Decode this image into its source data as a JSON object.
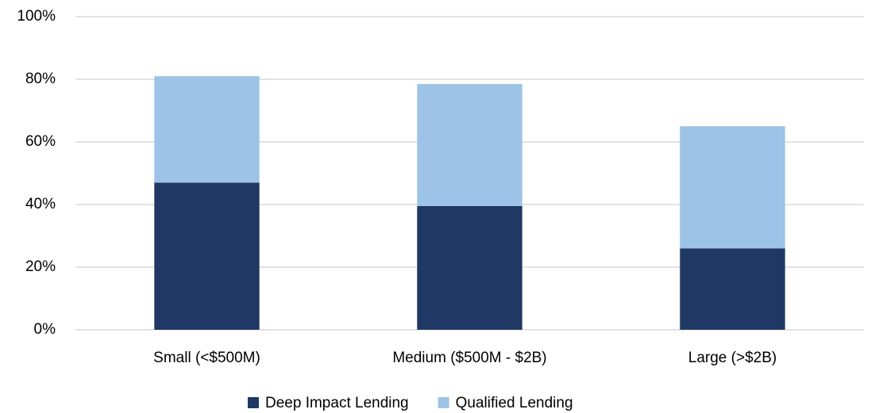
{
  "chart_data": {
    "type": "stacked_bar",
    "categories": [
      "Small (<$500M)",
      "Medium ($500M - $2B)",
      "Large (>$2B)"
    ],
    "series": [
      {
        "name": "Deep Impact Lending",
        "color": "#203864",
        "values": [
          47,
          39.5,
          26
        ]
      },
      {
        "name": "Qualified Lending",
        "color": "#9dc3e6",
        "values": [
          34,
          39,
          39
        ]
      }
    ],
    "ylim": [
      0,
      100
    ],
    "yticks": [
      {
        "value": 0,
        "label": "0%"
      },
      {
        "value": 20,
        "label": "20%"
      },
      {
        "value": 40,
        "label": "40%"
      },
      {
        "value": 60,
        "label": "60%"
      },
      {
        "value": 80,
        "label": "80%"
      },
      {
        "value": 100,
        "label": "100%"
      }
    ],
    "grid": true,
    "legend": "bottom"
  }
}
